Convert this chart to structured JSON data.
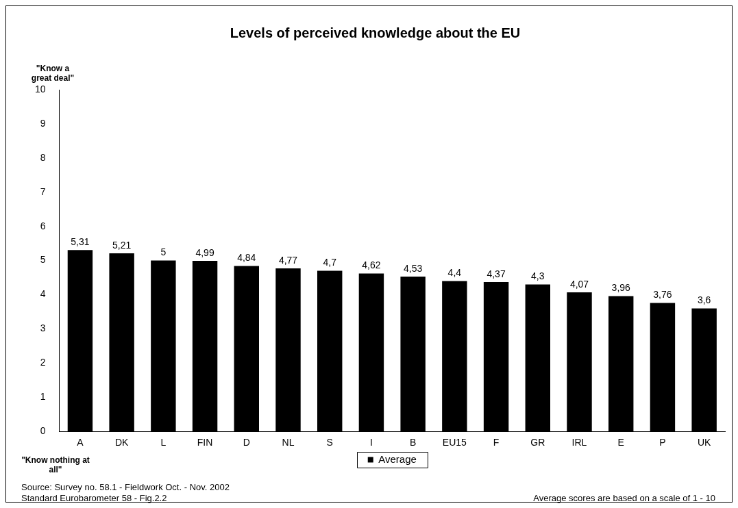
{
  "chart_data": {
    "type": "bar",
    "title": "Levels of perceived knowledge about the EU",
    "categories": [
      "A",
      "DK",
      "L",
      "FIN",
      "D",
      "NL",
      "S",
      "I",
      "B",
      "EU15",
      "F",
      "GR",
      "IRL",
      "E",
      "P",
      "UK"
    ],
    "series": [
      {
        "name": "Average",
        "color": "#000000",
        "values": [
          5.31,
          5.21,
          5,
          4.99,
          4.84,
          4.77,
          4.7,
          4.62,
          4.53,
          4.4,
          4.37,
          4.3,
          4.07,
          3.96,
          3.76,
          3.6
        ],
        "value_labels": [
          "5,31",
          "5,21",
          "5",
          "4,99",
          "4,84",
          "4,77",
          "4,7",
          "4,62",
          "4,53",
          "4,4",
          "4,37",
          "4,3",
          "4,07",
          "3,96",
          "3,76",
          "3,6"
        ]
      }
    ],
    "ylim": [
      0,
      10
    ],
    "yticks": [
      0,
      1,
      2,
      3,
      4,
      5,
      6,
      7,
      8,
      9,
      10
    ],
    "grid": false,
    "legend": "bottom",
    "annotations": [
      "\"Know a great deal\"",
      "\"Know nothing at all\"",
      "Source: Survey no. 58.1 -  Fieldwork Oct. - Nov. 2002",
      "Standard Eurobarometer 58 - Fig.2.2",
      "Average scores are based on a scale of 1 - 10"
    ]
  }
}
